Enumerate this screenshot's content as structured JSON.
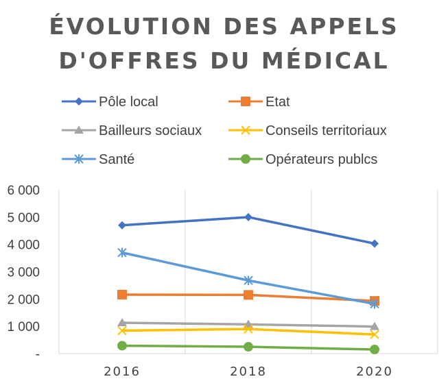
{
  "chart_data": {
    "type": "line",
    "title_line1": "ÉVOLUTION DES APPELS",
    "title_line2": "D'OFFRES DU MÉDICAL",
    "xlabel": "",
    "ylabel": "",
    "categories": [
      "2016",
      "2018",
      "2020"
    ],
    "ylim": [
      0,
      6000
    ],
    "y_ticks": [
      0,
      1000,
      2000,
      3000,
      4000,
      5000,
      6000
    ],
    "y_tick_labels": [
      "-",
      "1 000",
      "2 000",
      "3 000",
      "4 000",
      "5 000",
      "6 000"
    ],
    "grid": "vertical",
    "legend_position": "top",
    "series": [
      {
        "name": "Pôle local",
        "values": [
          4700,
          5000,
          4030
        ],
        "color": "#4472C4",
        "marker": "diamond"
      },
      {
        "name": "Etat",
        "values": [
          2160,
          2150,
          1930
        ],
        "color": "#ED7D31",
        "marker": "square"
      },
      {
        "name": "Bailleurs sociaux",
        "values": [
          1130,
          1070,
          990
        ],
        "color": "#A5A5A5",
        "marker": "triangle"
      },
      {
        "name": "Conseils territoriaux",
        "values": [
          840,
          900,
          700
        ],
        "color": "#FFC000",
        "marker": "x"
      },
      {
        "name": "Santé",
        "values": [
          3700,
          2680,
          1820
        ],
        "color": "#5B9BD5",
        "marker": "star"
      },
      {
        "name": "Opérateurs publcs",
        "values": [
          290,
          250,
          150
        ],
        "color": "#70AD47",
        "marker": "circle"
      }
    ]
  }
}
